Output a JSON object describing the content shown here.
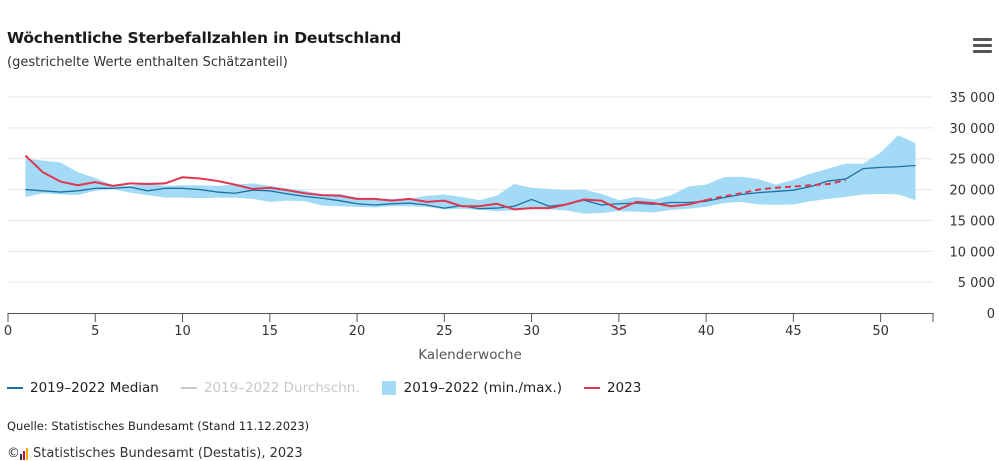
{
  "title": "Wöchentliche Sterbefallzahlen in Deutschland",
  "subtitle": "(gestrichelte Werte enthalten Schätzanteil)",
  "menu": {
    "icon": "hamburger-menu-icon"
  },
  "source": "Quelle: Statistisches Bundesamt (Stand 11.12.2023)",
  "credit": "Statistisches Bundesamt (Destatis), 2023",
  "colors": {
    "median": "#1f6fa0",
    "average": "#c8c8c8",
    "range": "#a3dbf6",
    "y2023": "#e0364f",
    "grid": "#e6e6e6",
    "axis": "#555555"
  },
  "legend": [
    {
      "label": "2019–2022 Median",
      "key": "median",
      "symbol": "line",
      "disabled": false
    },
    {
      "label": "2019–2022 Durchschn.",
      "key": "average",
      "symbol": "line",
      "disabled": true
    },
    {
      "label": "2019–2022 (min./max.)",
      "key": "range",
      "symbol": "box",
      "disabled": false
    },
    {
      "label": "2023",
      "key": "y2023",
      "symbol": "line",
      "disabled": false
    }
  ],
  "chart_data": {
    "type": "line",
    "title": "Wöchentliche Sterbefallzahlen in Deutschland",
    "subtitle": "(gestrichelte Werte enthalten Schätzanteil)",
    "xlabel": "Kalenderwoche",
    "ylabel": "",
    "xlim": [
      0,
      53
    ],
    "ylim": [
      0,
      35000
    ],
    "x_ticks": [
      0,
      5,
      10,
      15,
      20,
      25,
      30,
      35,
      40,
      45,
      50
    ],
    "x_tick_labels": [
      "0",
      "5",
      "10",
      "15",
      "20",
      "25",
      "30",
      "35",
      "40",
      "45",
      "50"
    ],
    "y_ticks": [
      0,
      5000,
      10000,
      15000,
      20000,
      25000,
      30000,
      35000
    ],
    "y_tick_labels": [
      "0",
      "5 000",
      "10 000",
      "15 000",
      "20 000",
      "25 000",
      "30 000",
      "35 000"
    ],
    "y_axis_position": "right",
    "grid": true,
    "legend_position": "bottom",
    "x": [
      1,
      2,
      3,
      4,
      5,
      6,
      7,
      8,
      9,
      10,
      11,
      12,
      13,
      14,
      15,
      16,
      17,
      18,
      19,
      20,
      21,
      22,
      23,
      24,
      25,
      26,
      27,
      28,
      29,
      30,
      31,
      32,
      33,
      34,
      35,
      36,
      37,
      38,
      39,
      40,
      41,
      42,
      43,
      44,
      45,
      46,
      47,
      48,
      49,
      50,
      51,
      52
    ],
    "range": {
      "name": "2019–2022 (min./max.)",
      "min": [
        18800,
        19400,
        19200,
        19100,
        19800,
        20100,
        19500,
        19100,
        18700,
        18700,
        18600,
        18700,
        18700,
        18500,
        18000,
        18200,
        18100,
        17400,
        17300,
        17200,
        17100,
        17300,
        17300,
        17200,
        16800,
        16900,
        16700,
        16500,
        16600,
        16900,
        16800,
        16600,
        16100,
        16200,
        16500,
        16400,
        16300,
        16700,
        16900,
        17200,
        17800,
        18000,
        17600,
        17500,
        17600,
        18100,
        18500,
        18800,
        19200,
        19300,
        19200,
        18300
      ],
      "max": [
        25000,
        24700,
        24400,
        22800,
        21900,
        20700,
        20600,
        21000,
        20600,
        20700,
        20700,
        20600,
        20800,
        21000,
        20600,
        20200,
        19800,
        19200,
        19300,
        18700,
        18400,
        18500,
        18500,
        19000,
        19200,
        18800,
        18300,
        19000,
        20900,
        20300,
        20100,
        19900,
        20000,
        19300,
        18300,
        18800,
        18400,
        19100,
        20500,
        20800,
        22000,
        22100,
        21700,
        20800,
        21600,
        22600,
        23400,
        24200,
        24200,
        26000,
        28800,
        27500
      ]
    },
    "series": [
      {
        "name": "2019–2022 Median",
        "key": "median",
        "values": [
          20000,
          19800,
          19600,
          19800,
          20200,
          20200,
          20400,
          19800,
          20200,
          20200,
          20000,
          19600,
          19400,
          19900,
          19800,
          19300,
          18900,
          18600,
          18200,
          17700,
          17500,
          17700,
          17800,
          17500,
          17000,
          17400,
          16900,
          17000,
          17300,
          18400,
          17300,
          17600,
          18300,
          17500,
          17700,
          17800,
          17600,
          17900,
          17900,
          18100,
          18700,
          19200,
          19500,
          19700,
          19900,
          20500,
          21400,
          21700,
          23400,
          23600,
          23700,
          23900
        ]
      },
      {
        "name": "2023",
        "key": "y2023",
        "values": [
          25500,
          22800,
          21300,
          20700,
          21200,
          20600,
          21000,
          20900,
          21000,
          22000,
          21800,
          21400,
          20800,
          20100,
          20300,
          19900,
          19400,
          19100,
          19000,
          18500,
          18500,
          18200,
          18500,
          18000,
          18200,
          17300,
          17300,
          17700,
          16800,
          17000,
          17000,
          17600,
          18400,
          18200,
          16800,
          18000,
          17800,
          17300,
          17600,
          18300,
          null,
          null,
          null,
          null,
          null,
          null,
          null,
          null,
          null,
          null,
          null,
          null
        ]
      },
      {
        "name": "2023",
        "key": "y2023_estimated",
        "dashed": true,
        "values": [
          null,
          null,
          null,
          null,
          null,
          null,
          null,
          null,
          null,
          null,
          null,
          null,
          null,
          null,
          null,
          null,
          null,
          null,
          null,
          null,
          null,
          null,
          null,
          null,
          null,
          null,
          null,
          null,
          null,
          null,
          null,
          null,
          null,
          null,
          null,
          null,
          null,
          null,
          null,
          18300,
          18900,
          19400,
          20000,
          20300,
          20500,
          20700,
          20900,
          21500,
          null,
          null,
          null,
          null
        ]
      }
    ]
  }
}
